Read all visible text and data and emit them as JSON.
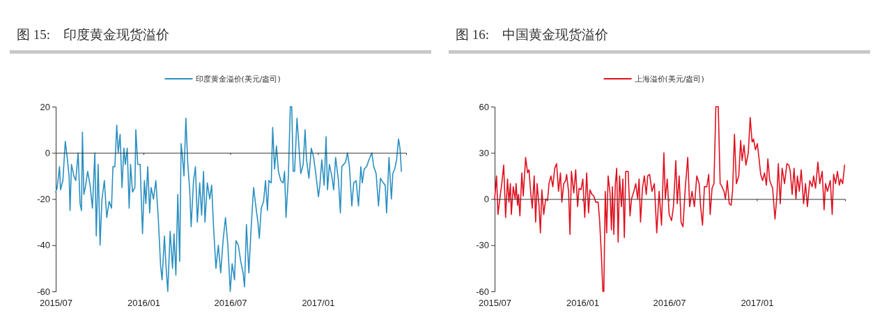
{
  "chart_data": [
    {
      "type": "line",
      "title": "图 15:    印度黄金现货溢价",
      "legend": "top",
      "x": [
        "2015-07-01",
        "2015-07-04",
        "2015-07-09",
        "2015-07-11",
        "2015-07-16",
        "2015-07-21",
        "2015-07-25",
        "2015-07-29",
        "2015-07-31",
        "2015-08-03",
        "2015-08-08",
        "2015-08-12",
        "2015-08-17",
        "2015-08-21",
        "2015-08-24",
        "2015-08-26",
        "2015-08-29",
        "2015-09-01",
        "2015-09-06",
        "2015-09-11",
        "2015-09-16",
        "2015-09-21",
        "2015-09-24",
        "2015-09-28",
        "2015-10-02",
        "2015-10-06",
        "2015-10-11",
        "2015-10-16",
        "2015-10-21",
        "2015-10-26",
        "2015-10-29",
        "2015-11-02",
        "2015-11-06",
        "2015-11-09",
        "2015-11-13",
        "2015-11-17",
        "2015-11-21",
        "2015-11-24",
        "2015-11-28",
        "2015-12-02",
        "2015-12-05",
        "2015-12-09",
        "2015-12-14",
        "2015-12-16",
        "2015-12-20",
        "2015-12-25",
        "2015-12-30",
        "2016-01-03",
        "2016-01-06",
        "2016-01-10",
        "2016-01-14",
        "2016-01-17",
        "2016-01-22",
        "2016-01-27",
        "2016-02-01",
        "2016-02-06",
        "2016-02-09",
        "2016-02-14",
        "2016-02-17",
        "2016-02-21",
        "2016-02-26",
        "2016-03-02",
        "2016-03-05",
        "2016-03-09",
        "2016-03-13",
        "2016-03-17",
        "2016-03-20",
        "2016-03-23",
        "2016-03-26",
        "2016-03-30",
        "2016-04-03",
        "2016-04-07",
        "2016-04-10",
        "2016-04-15",
        "2016-04-19",
        "2016-04-23",
        "2016-04-28",
        "2016-05-02",
        "2016-05-06",
        "2016-05-09",
        "2016-05-14",
        "2016-05-19",
        "2016-05-23",
        "2016-05-27",
        "2016-06-01",
        "2016-06-06",
        "2016-06-11",
        "2016-06-16",
        "2016-06-21",
        "2016-06-26",
        "2016-06-30",
        "2016-07-01",
        "2016-07-05",
        "2016-07-10",
        "2016-07-13",
        "2016-07-18",
        "2016-07-23",
        "2016-07-28",
        "2016-07-31",
        "2016-08-04",
        "2016-08-09",
        "2016-08-14",
        "2016-08-19",
        "2016-08-23",
        "2016-08-28",
        "2016-08-31",
        "2016-09-04",
        "2016-09-09",
        "2016-09-13",
        "2016-09-17",
        "2016-09-20",
        "2016-09-25",
        "2016-09-28",
        "2016-10-02",
        "2016-10-06",
        "2016-10-10",
        "2016-10-15",
        "2016-10-20",
        "2016-10-23",
        "2016-10-26",
        "2016-10-31",
        "2016-11-04",
        "2016-11-07",
        "2016-11-10",
        "2016-11-13",
        "2016-11-18",
        "2016-11-22",
        "2016-11-26",
        "2016-12-01",
        "2016-12-05",
        "2016-12-08",
        "2016-12-13",
        "2016-12-18",
        "2016-12-23",
        "2016-12-28",
        "2017-01-02",
        "2017-01-05",
        "2017-01-09",
        "2017-01-14",
        "2017-01-18",
        "2017-01-21",
        "2017-01-25",
        "2017-01-30",
        "2017-02-03",
        "2017-02-07",
        "2017-02-13",
        "2017-02-17",
        "2017-02-20",
        "2017-02-24",
        "2017-02-28",
        "2017-03-04",
        "2017-03-08",
        "2017-03-13",
        "2017-03-17",
        "2017-03-22",
        "2017-03-27",
        "2017-04-01",
        "2017-04-04",
        "2017-04-08",
        "2017-04-13",
        "2017-04-18",
        "2017-04-24",
        "2017-04-28",
        "2017-05-03",
        "2017-05-08",
        "2017-05-12",
        "2017-05-18",
        "2017-05-22",
        "2017-05-25",
        "2017-05-30",
        "2017-06-04",
        "2017-06-07",
        "2017-06-11",
        "2017-06-15",
        "2017-06-19",
        "2017-06-22",
        "2017-06-25"
      ],
      "series": [
        {
          "name": "印度黄金溢价(美元/盎司)",
          "color": "#2a8fc1",
          "values": [
            -17,
            -15,
            -6,
            -16,
            -12,
            5,
            -2,
            -10,
            -25,
            -5,
            -10,
            -12,
            0,
            -22,
            -25,
            9,
            -18,
            -15,
            -8,
            -14,
            -24,
            0,
            -36,
            -5,
            -40,
            -20,
            -12,
            -28,
            -21,
            -24,
            -6,
            -6,
            12,
            0,
            8,
            -15,
            2,
            -5,
            2,
            -24,
            -5,
            -17,
            -15,
            10,
            -5,
            -5,
            -35,
            -12,
            -22,
            -6,
            -26,
            -15,
            -20,
            -12,
            -28,
            -49,
            -55,
            -36,
            -48,
            -60,
            -34,
            -50,
            -35,
            -53,
            -18,
            -47,
            4,
            -2,
            -10,
            15,
            -5,
            -16,
            -32,
            -12,
            -6,
            -30,
            -13,
            -27,
            -8,
            -30,
            -13,
            -20,
            -14,
            -32,
            -50,
            -40,
            -52,
            -38,
            -28,
            -40,
            -56,
            -60,
            -48,
            -55,
            -38,
            -40,
            -47,
            -52,
            -58,
            -31,
            -52,
            -32,
            -15,
            -22,
            -30,
            -37,
            -24,
            -21,
            -12,
            -25,
            -12,
            -13,
            11,
            -7,
            3,
            -8,
            -12,
            -13,
            -8,
            -28,
            -10,
            20,
            20,
            -8,
            -8,
            15,
            3,
            -9,
            -5,
            10,
            -3,
            -11,
            2,
            -2,
            -10,
            -19,
            -14,
            -3,
            -14,
            7,
            -16,
            -5,
            -10,
            -16,
            -2,
            -12,
            -26,
            -6,
            -5,
            -4,
            0,
            -6,
            -23,
            -13,
            -12,
            -23,
            -6,
            -13,
            -7,
            -6,
            -3,
            0,
            -6,
            -9,
            -23,
            -11,
            -13,
            -14,
            -26,
            -2,
            -20,
            -9,
            -7,
            -3,
            6,
            2,
            -8
          ]
        }
      ],
      "xlim": [
        "2015-07-01",
        "2017-07-05"
      ],
      "xticks": [
        {
          "value": "2015-07-01",
          "label": "2015/07"
        },
        {
          "value": "2016-01-01",
          "label": "2016/01"
        },
        {
          "value": "2016-07-01",
          "label": "2016/07"
        },
        {
          "value": "2017-01-01",
          "label": "2017/01"
        }
      ],
      "ylim": [
        -60,
        20
      ],
      "yticks": [
        -60,
        -40,
        -20,
        0,
        20
      ]
    },
    {
      "type": "line",
      "title": "图 16:    中国黄金现货溢价",
      "legend": "top",
      "x": [
        "2015-07-01",
        "2015-07-05",
        "2015-07-08",
        "2015-07-13",
        "2015-07-16",
        "2015-07-20",
        "2015-07-24",
        "2015-07-28",
        "2015-07-31",
        "2015-08-03",
        "2015-08-05",
        "2015-08-09",
        "2015-08-13",
        "2015-08-15",
        "2015-08-18",
        "2015-08-20",
        "2015-08-23",
        "2015-08-27",
        "2015-08-30",
        "2015-09-04",
        "2015-09-08",
        "2015-09-11",
        "2015-09-15",
        "2015-09-18",
        "2015-09-22",
        "2015-09-25",
        "2015-09-28",
        "2015-10-02",
        "2015-10-05",
        "2015-10-08",
        "2015-10-12",
        "2015-10-16",
        "2015-10-20",
        "2015-10-23",
        "2015-10-27",
        "2015-10-31",
        "2015-11-04",
        "2015-11-08",
        "2015-11-12",
        "2015-11-16",
        "2015-11-19",
        "2015-11-23",
        "2015-11-27",
        "2015-11-29",
        "2015-12-03",
        "2015-12-06",
        "2015-12-09",
        "2015-12-14",
        "2015-12-18",
        "2015-12-22",
        "2015-12-25",
        "2015-12-29",
        "2016-01-02",
        "2016-01-06",
        "2016-01-10",
        "2016-01-14",
        "2016-01-17",
        "2016-01-21",
        "2016-01-25",
        "2016-01-29",
        "2016-02-03",
        "2016-02-06",
        "2016-02-10",
        "2016-02-13",
        "2016-02-15",
        "2016-02-18",
        "2016-02-21",
        "2016-02-24",
        "2016-02-28",
        "2016-03-02",
        "2016-03-04",
        "2016-03-07",
        "2016-03-10",
        "2016-03-13",
        "2016-03-16",
        "2016-03-19",
        "2016-03-23",
        "2016-03-26",
        "2016-03-29",
        "2016-04-01",
        "2016-04-06",
        "2016-04-10",
        "2016-04-13",
        "2016-04-18",
        "2016-04-22",
        "2016-04-26",
        "2016-04-29",
        "2016-05-02",
        "2016-05-06",
        "2016-05-10",
        "2016-05-14",
        "2016-05-17",
        "2016-05-21",
        "2016-05-26",
        "2016-05-31",
        "2016-06-05",
        "2016-06-10",
        "2016-06-15",
        "2016-06-20",
        "2016-06-23",
        "2016-06-27",
        "2016-07-01",
        "2016-07-06",
        "2016-07-10",
        "2016-07-15",
        "2016-07-18",
        "2016-07-22",
        "2016-07-26",
        "2016-07-30",
        "2016-08-04",
        "2016-08-09",
        "2016-08-13",
        "2016-08-18",
        "2016-08-23",
        "2016-08-28",
        "2016-09-02",
        "2016-09-05",
        "2016-09-09",
        "2016-09-13",
        "2016-09-18",
        "2016-09-22",
        "2016-09-25",
        "2016-09-29",
        "2016-10-03",
        "2016-10-07",
        "2016-10-12",
        "2016-10-16",
        "2016-10-20",
        "2016-10-24",
        "2016-10-27",
        "2016-10-31",
        "2016-11-04",
        "2016-11-08",
        "2016-11-11",
        "2016-11-15",
        "2016-11-19",
        "2016-11-24",
        "2016-11-28",
        "2016-12-01",
        "2016-12-05",
        "2016-12-09",
        "2016-12-14",
        "2016-12-18",
        "2016-12-22",
        "2016-12-25",
        "2016-12-29",
        "2017-01-02",
        "2017-01-06",
        "2017-01-09",
        "2017-01-13",
        "2017-01-17",
        "2017-01-21",
        "2017-01-24",
        "2017-01-28",
        "2017-02-03",
        "2017-02-08",
        "2017-02-12",
        "2017-02-15",
        "2017-02-19",
        "2017-02-23",
        "2017-02-28",
        "2017-03-05",
        "2017-03-09",
        "2017-03-12",
        "2017-03-16",
        "2017-03-20",
        "2017-03-24",
        "2017-03-27",
        "2017-03-31",
        "2017-04-04",
        "2017-04-09",
        "2017-04-13",
        "2017-04-17",
        "2017-04-22",
        "2017-04-27",
        "2017-04-30",
        "2017-05-04",
        "2017-05-09",
        "2017-05-13",
        "2017-05-18",
        "2017-05-22",
        "2017-05-25",
        "2017-05-29",
        "2017-06-04",
        "2017-06-08",
        "2017-06-11",
        "2017-06-15",
        "2017-06-19",
        "2017-06-23",
        "2017-06-26",
        "2017-06-30",
        "2017-07-04"
      ],
      "series": [
        {
          "name": "上海溢价(美元/盎司)",
          "color": "#e0101e",
          "values": [
            0,
            15,
            -10,
            3,
            10,
            22,
            -12,
            13,
            -2,
            10,
            -10,
            8,
            0,
            10,
            -4,
            3,
            -11,
            17,
            2,
            27,
            17,
            19,
            3,
            -6,
            15,
            -15,
            10,
            -4,
            -22,
            6,
            -10,
            0,
            -1,
            10,
            15,
            8,
            20,
            23,
            5,
            17,
            -2,
            10,
            12,
            16,
            5,
            -23,
            18,
            4,
            19,
            -5,
            7,
            6,
            13,
            -12,
            17,
            -9,
            6,
            3,
            2,
            -2,
            -2,
            -13,
            -37,
            -60,
            -60,
            5,
            -22,
            15,
            4,
            -20,
            8,
            -23,
            9,
            20,
            -28,
            15,
            -5,
            13,
            -25,
            18,
            18,
            -11,
            0,
            5,
            10,
            0,
            13,
            -15,
            7,
            15,
            3,
            15,
            16,
            5,
            10,
            -22,
            5,
            -17,
            30,
            0,
            13,
            -10,
            -14,
            -5,
            25,
            -3,
            15,
            -15,
            -18,
            8,
            27,
            -5,
            5,
            -5,
            15,
            10,
            -5,
            -17,
            8,
            8,
            16,
            -10,
            7,
            10,
            60,
            60,
            10,
            8,
            5,
            0,
            12,
            -3,
            -4,
            5,
            42,
            10,
            15,
            38,
            25,
            35,
            22,
            30,
            53,
            37,
            39,
            32,
            36,
            25,
            16,
            12,
            17,
            9,
            26,
            12,
            7,
            -13,
            2,
            23,
            -3,
            20,
            10,
            23,
            22,
            18,
            3,
            20,
            0,
            15,
            5,
            19,
            -3,
            10,
            -5,
            12,
            8,
            15,
            7,
            24,
            10,
            18,
            -7,
            10,
            5,
            12,
            -10,
            16,
            10,
            18,
            9,
            13,
            10,
            22
          ]
        }
      ],
      "xlim": [
        "2015-07-01",
        "2017-07-05"
      ],
      "xticks": [
        {
          "value": "2015-07-01",
          "label": "2015/07"
        },
        {
          "value": "2016-01-01",
          "label": "2016/01"
        },
        {
          "value": "2016-07-01",
          "label": "2016/07"
        },
        {
          "value": "2017-01-01",
          "label": "2017/01"
        }
      ],
      "ylim": [
        -60,
        60
      ],
      "yticks": [
        -60,
        -30,
        0,
        30,
        60
      ]
    }
  ]
}
